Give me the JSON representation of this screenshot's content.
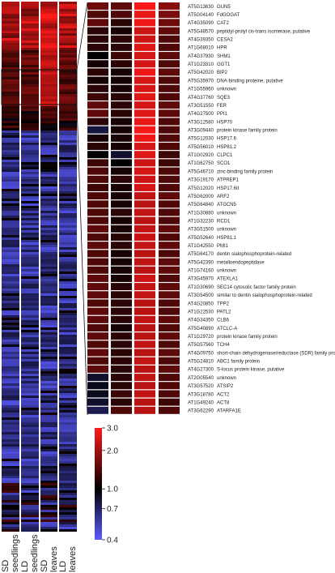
{
  "chart_data": {
    "type": "heatmap",
    "columns": [
      {
        "line1": "SD",
        "line2": "seedlings"
      },
      {
        "line1": "LD",
        "line2": "seedlings"
      },
      {
        "line1": "SD",
        "line2": "leaves"
      },
      {
        "line1": "LD",
        "line2": "leaves"
      }
    ],
    "colorbar": {
      "scale": "log",
      "range": [
        0.4,
        3.0
      ],
      "ticks": [
        "3.0",
        "2.0",
        "1.0",
        "0.7",
        "0.4"
      ],
      "tick_values": [
        3.0,
        2.0,
        1.0,
        0.7,
        0.4
      ],
      "colors": {
        "high": "#ff1a1a",
        "mid": "#000000",
        "low": "#5a5aff"
      }
    },
    "rows": [
      {
        "gene": "AT5G13630",
        "description": "GUN5",
        "values": [
          1.6,
          1.5,
          2.9,
          1.8
        ]
      },
      {
        "gene": "AT5G04140",
        "description": "FdGOGAT",
        "values": [
          1.4,
          1.4,
          2.7,
          1.7
        ]
      },
      {
        "gene": "AT4G35090",
        "description": "CAT2",
        "values": [
          1.5,
          1.2,
          2.8,
          1.6
        ]
      },
      {
        "gene": "AT5G48570",
        "description": "peptidyl-prolyl cis-trans isomerase, putative",
        "values": [
          1.2,
          1.1,
          2.4,
          1.5
        ]
      },
      {
        "gene": "AT4G39350",
        "description": "CESA2",
        "values": [
          1.2,
          1.2,
          2.4,
          1.4
        ]
      },
      {
        "gene": "AT1G68010",
        "description": "HPR",
        "values": [
          1.2,
          1.2,
          2.6,
          1.4
        ]
      },
      {
        "gene": "AT4G37930",
        "description": "SHM1",
        "values": [
          1.0,
          1.3,
          2.5,
          1.5
        ]
      },
      {
        "gene": "AT1G23310",
        "description": "GGT1",
        "values": [
          1.1,
          1.2,
          2.5,
          1.4
        ]
      },
      {
        "gene": "AT5G42020",
        "description": "BIP2",
        "values": [
          1.2,
          1.1,
          2.8,
          1.5
        ]
      },
      {
        "gene": "AT5G35970",
        "description": "DNA-binding proteine, putative",
        "values": [
          1.1,
          1.1,
          2.5,
          1.4
        ]
      },
      {
        "gene": "AT1G55960",
        "description": "unknown",
        "values": [
          1.2,
          1.1,
          2.5,
          1.4
        ]
      },
      {
        "gene": "AT4G37760",
        "description": "SQE3",
        "values": [
          1.3,
          1.2,
          2.6,
          1.4
        ]
      },
      {
        "gene": "AT3G51550",
        "description": "FER",
        "values": [
          1.5,
          1.2,
          2.5,
          1.5
        ]
      },
      {
        "gene": "AT4G27500",
        "description": "PPI1",
        "values": [
          1.5,
          1.2,
          2.6,
          1.5
        ]
      },
      {
        "gene": "AT3G12580",
        "description": "HSP70",
        "values": [
          1.2,
          1.1,
          2.7,
          1.4
        ]
      },
      {
        "gene": "AT3G09440",
        "description": "protein kinase family protein",
        "values": [
          0.8,
          1.1,
          2.9,
          1.4
        ]
      },
      {
        "gene": "AT5G12030",
        "description": "HSP17.6",
        "values": [
          1.1,
          1.1,
          2.8,
          1.4
        ]
      },
      {
        "gene": "AT5G56010",
        "description": "HSP81.2",
        "values": [
          1.2,
          1.1,
          2.5,
          1.4
        ]
      },
      {
        "gene": "AT1G02920",
        "description": "CLPC1",
        "values": [
          1.0,
          0.85,
          2.6,
          1.3
        ]
      },
      {
        "gene": "AT1G62750",
        "description": "SCO1",
        "values": [
          1.3,
          1.0,
          2.4,
          1.3
        ]
      },
      {
        "gene": "AT5G46710",
        "description": "zinc-binding family protein",
        "values": [
          1.4,
          1.1,
          2.5,
          1.4
        ]
      },
      {
        "gene": "AT3G19170",
        "description": "ATPREP1",
        "values": [
          1.4,
          1.2,
          2.4,
          1.4
        ]
      },
      {
        "gene": "AT5G12020",
        "description": "HSP17.6II",
        "values": [
          1.3,
          1.1,
          2.5,
          1.4
        ]
      },
      {
        "gene": "AT5G62000",
        "description": "ARF2",
        "values": [
          1.4,
          1.1,
          2.3,
          1.5
        ]
      },
      {
        "gene": "AT5G64840",
        "description": "ATGCN5",
        "values": [
          1.4,
          1.1,
          2.2,
          1.4
        ]
      },
      {
        "gene": "AT1G30880",
        "description": "unknown",
        "values": [
          1.4,
          1.2,
          2.3,
          1.4
        ]
      },
      {
        "gene": "AT1G32230",
        "description": "RCD1",
        "values": [
          1.4,
          1.1,
          2.2,
          1.4
        ]
      },
      {
        "gene": "AT3G51500",
        "description": "unknown",
        "values": [
          1.5,
          1.1,
          2.3,
          1.5
        ]
      },
      {
        "gene": "AT5G52640",
        "description": "HSP81.1",
        "values": [
          1.4,
          1.2,
          2.4,
          1.4
        ]
      },
      {
        "gene": "AT1G42550",
        "description": "PMI1",
        "values": [
          1.5,
          1.2,
          2.3,
          1.5
        ]
      },
      {
        "gene": "AT5G64170",
        "description": "dentin sialophosphoprotein-related",
        "values": [
          1.4,
          1.1,
          2.2,
          1.4
        ]
      },
      {
        "gene": "AT5G42390",
        "description": "metalloendopeptidase",
        "values": [
          1.4,
          1.1,
          2.3,
          1.5
        ]
      },
      {
        "gene": "AT1G74160",
        "description": "unknown",
        "values": [
          1.4,
          1.1,
          2.2,
          1.5
        ]
      },
      {
        "gene": "AT3G45970",
        "description": "ATEXLA1",
        "values": [
          1.5,
          1.1,
          2.4,
          1.4
        ]
      },
      {
        "gene": "AT1G30690",
        "description": "SEC14 cytosolic factor family protein",
        "values": [
          1.5,
          1.2,
          2.3,
          1.5
        ]
      },
      {
        "gene": "AT3G54500",
        "description": "similar to dentin sialophosphoprotein-related",
        "values": [
          1.5,
          1.2,
          2.3,
          1.5
        ]
      },
      {
        "gene": "AT4G20850",
        "description": "TPP2",
        "values": [
          1.4,
          1.2,
          2.2,
          1.4
        ]
      },
      {
        "gene": "AT1G22530",
        "description": "PATL2",
        "values": [
          1.5,
          1.2,
          2.2,
          1.4
        ]
      },
      {
        "gene": "AT4G34350",
        "description": "CLB6",
        "values": [
          1.5,
          1.2,
          2.3,
          1.5
        ]
      },
      {
        "gene": "AT5G40890",
        "description": "ATCLC-A",
        "values": [
          1.4,
          1.1,
          2.2,
          1.4
        ]
      },
      {
        "gene": "AT1G29720",
        "description": "protein kinase family protein",
        "values": [
          1.5,
          1.2,
          2.2,
          1.5
        ]
      },
      {
        "gene": "AT5G57560",
        "description": "TCH4",
        "values": [
          1.4,
          1.2,
          2.3,
          1.4
        ]
      },
      {
        "gene": "AT4G09750",
        "description": "short-chain dehydrogenase/reductase (SDR) family protein",
        "values": [
          1.5,
          1.2,
          2.2,
          1.5
        ]
      },
      {
        "gene": "AT5G24810",
        "description": "ABC1 family protein",
        "values": [
          1.4,
          1.2,
          2.3,
          1.4
        ]
      },
      {
        "gene": "AT4G27300",
        "description": "S-locus protein kinase, putative",
        "values": [
          1.5,
          1.2,
          2.2,
          1.5
        ]
      },
      {
        "gene": "AT2G05540",
        "description": "unknown",
        "values": [
          0.85,
          1.2,
          2.3,
          1.4
        ]
      },
      {
        "gene": "AT3G57520",
        "description": "ATSIP2",
        "values": [
          0.9,
          1.2,
          2.2,
          1.4
        ]
      },
      {
        "gene": "AT3G18780",
        "description": "ACT2",
        "values": [
          0.9,
          1.3,
          2.3,
          1.4
        ]
      },
      {
        "gene": "AT1G49240",
        "description": "ACT8",
        "values": [
          0.85,
          1.2,
          2.2,
          1.3
        ]
      },
      {
        "gene": "AT3G62290",
        "description": "ATARFA1E",
        "values": [
          0.75,
          1.4,
          2.2,
          1.4
        ]
      }
    ]
  }
}
